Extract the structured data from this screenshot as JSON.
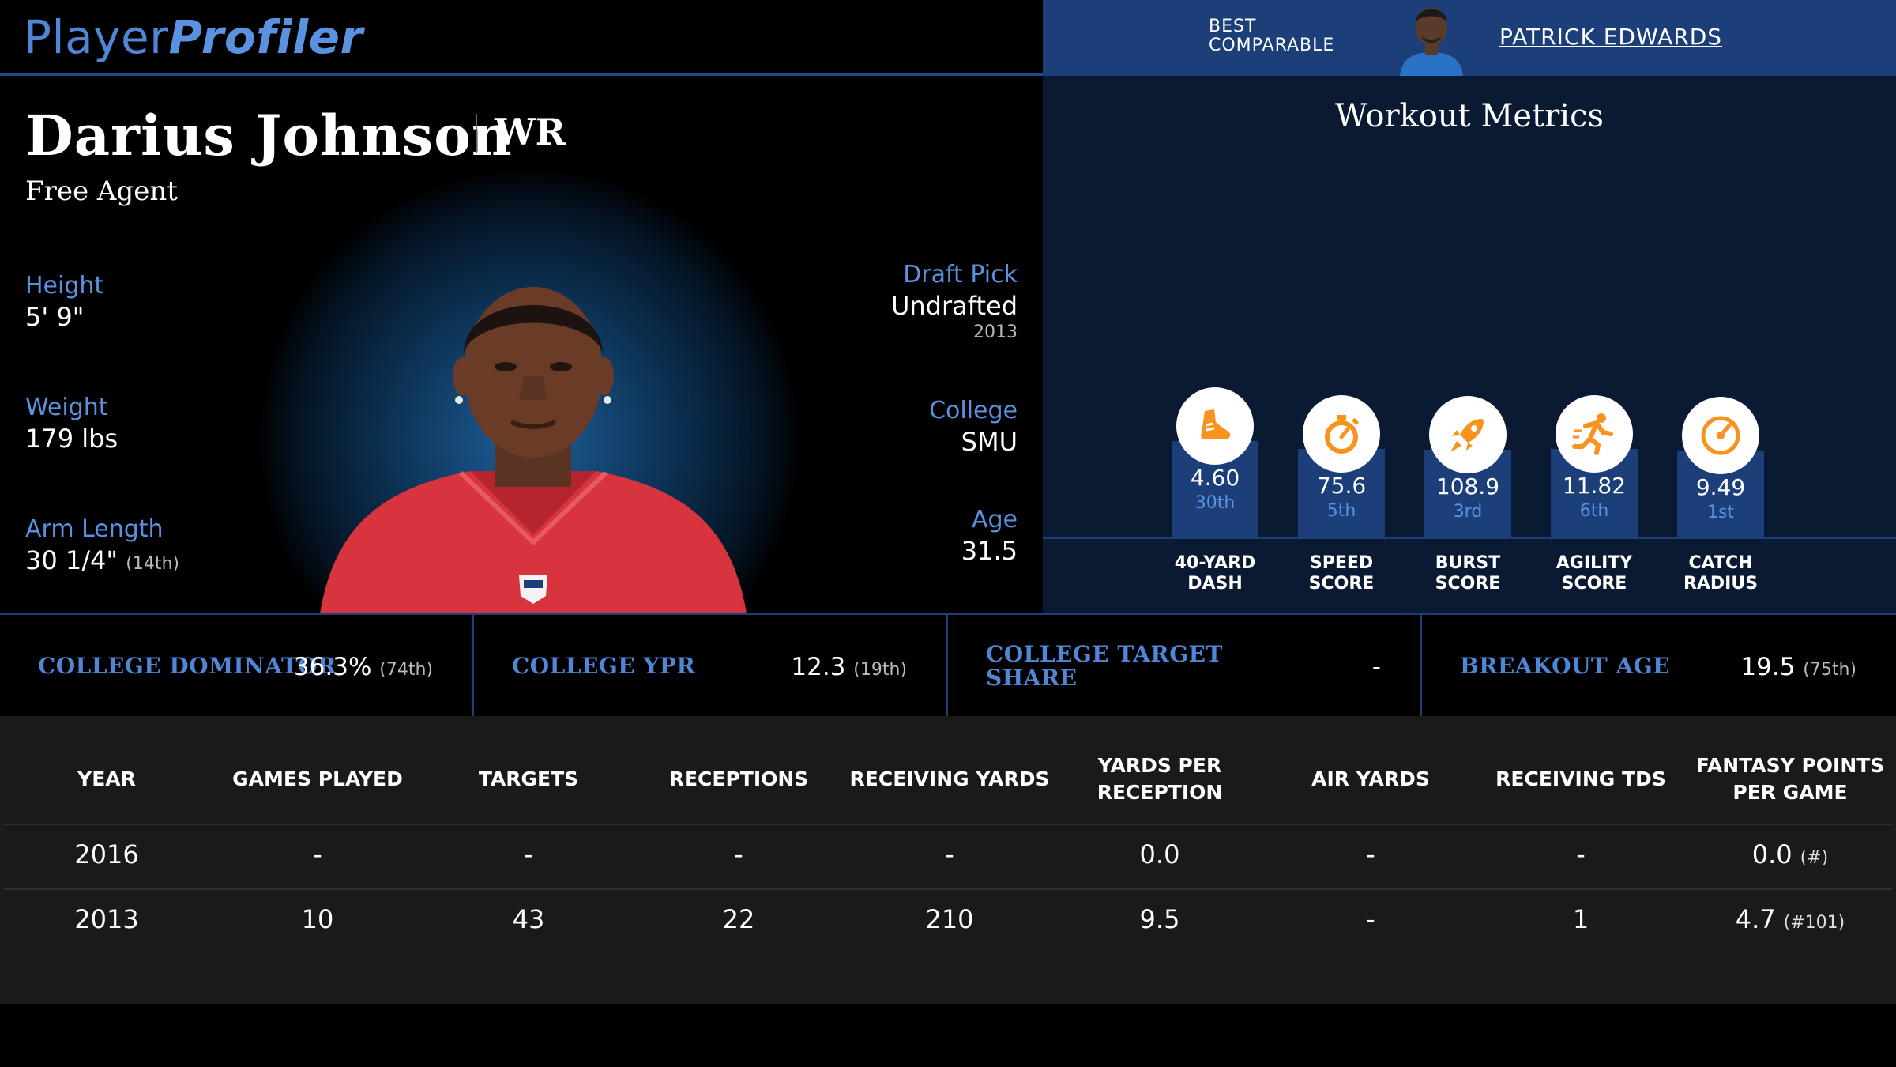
{
  "header": {
    "logo_part1": "Player",
    "logo_part2": "Profiler",
    "best_comparable_line1": "BEST",
    "best_comparable_line2": "COMPARABLE",
    "best_comparable_name": "PATRICK EDWARDS"
  },
  "player": {
    "name": "Darius Johnson",
    "position": "WR",
    "team": "Free Agent",
    "height_label": "Height",
    "height_value": "5' 9\"",
    "weight_label": "Weight",
    "weight_value": "179 lbs",
    "arm_label": "Arm Length",
    "arm_value": "30 1/4\"",
    "arm_rank": "(14th)",
    "draft_label": "Draft Pick",
    "draft_value": "Undrafted",
    "draft_year": "2013",
    "college_label": "College",
    "college_value": "SMU",
    "age_label": "Age",
    "age_value": "31.5"
  },
  "workout": {
    "title": "Workout Metrics",
    "metrics": [
      {
        "icon": "shoe-icon",
        "value": "4.60",
        "percentile": "30th",
        "name1": "40-YARD",
        "name2": "DASH",
        "level": 30
      },
      {
        "icon": "stopwatch-icon",
        "value": "75.6",
        "percentile": "5th",
        "name1": "SPEED",
        "name2": "SCORE",
        "level": 5
      },
      {
        "icon": "rocket-icon",
        "value": "108.9",
        "percentile": "3rd",
        "name1": "BURST",
        "name2": "SCORE",
        "level": 3
      },
      {
        "icon": "runner-icon",
        "value": "11.82",
        "percentile": "6th",
        "name1": "AGILITY",
        "name2": "SCORE",
        "level": 6
      },
      {
        "icon": "gauge-icon",
        "value": "9.49",
        "percentile": "1st",
        "name1": "CATCH",
        "name2": "RADIUS",
        "level": 1
      }
    ]
  },
  "college": [
    {
      "label1": "COLLEGE DOMINATOR",
      "label2": "",
      "value": "36.3%",
      "rank": "(74th)"
    },
    {
      "label1": "COLLEGE YPR",
      "label2": "",
      "value": "12.3",
      "rank": "(19th)"
    },
    {
      "label1": "COLLEGE TARGET",
      "label2": "SHARE",
      "value": "-",
      "rank": ""
    },
    {
      "label1": "BREAKOUT AGE",
      "label2": "",
      "value": "19.5",
      "rank": "(75th)"
    }
  ],
  "stats_table": {
    "headers": [
      "YEAR",
      "GAMES PLAYED",
      "TARGETS",
      "RECEPTIONS",
      "RECEIVING YARDS",
      "YARDS PER RECEPTION",
      "AIR YARDS",
      "RECEIVING TDS",
      "FANTASY POINTS PER GAME"
    ],
    "rows": [
      {
        "year": "2016",
        "games": "-",
        "targets": "-",
        "receptions": "-",
        "yards": "-",
        "ypr": "0.0",
        "air_yards": "-",
        "tds": "-",
        "fppg": "0.0",
        "fppg_rank": "(#)"
      },
      {
        "year": "2013",
        "games": "10",
        "targets": "43",
        "receptions": "22",
        "yards": "210",
        "ypr": "9.5",
        "air_yards": "-",
        "tds": "1",
        "fppg": "4.7",
        "fppg_rank": "(#101)"
      }
    ]
  }
}
